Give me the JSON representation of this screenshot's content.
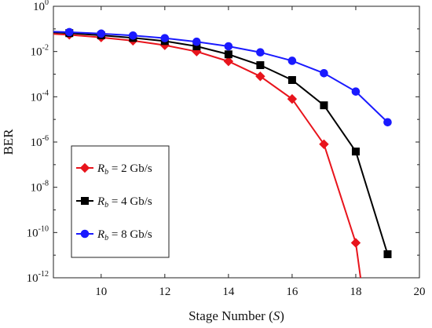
{
  "chart_data": {
    "type": "line",
    "title": "",
    "xlabel": "Stage Number (S)",
    "xlabel_parts": {
      "pre": "Stage Number (",
      "var": "S",
      "post": ")"
    },
    "ylabel": "BER",
    "x_scale": "linear",
    "y_scale": "log",
    "xlim": [
      8.5,
      20
    ],
    "ylim": [
      1e-12,
      1
    ],
    "x_ticks": [
      10,
      12,
      14,
      16,
      18,
      20
    ],
    "y_ticks": [
      {
        "value": 1,
        "base": "10",
        "exp": "0"
      },
      {
        "value": 0.01,
        "base": "10",
        "exp": "-2"
      },
      {
        "value": 0.0001,
        "base": "10",
        "exp": "-4"
      },
      {
        "value": 1e-06,
        "base": "10",
        "exp": "-6"
      },
      {
        "value": 1e-08,
        "base": "10",
        "exp": "-8"
      },
      {
        "value": 1e-10,
        "base": "10",
        "exp": "-10"
      },
      {
        "value": 1e-12,
        "base": "10",
        "exp": "-12"
      }
    ],
    "grid": false,
    "legend_position": "lower-left",
    "series": [
      {
        "name": "Rb = 2 Gb/s",
        "label": {
          "sym": "R",
          "sub": "b",
          "rest": " = 2 Gb/s"
        },
        "color": "#e8141c",
        "marker": "diamond",
        "marker_color": "#e8141c",
        "x": [
          8.5,
          9,
          10,
          11,
          12,
          13,
          14,
          15,
          16,
          17,
          18,
          18.15
        ],
        "y": [
          0.06,
          0.055,
          0.042,
          0.03,
          0.019,
          0.01,
          0.0037,
          0.0008,
          8e-05,
          8e-07,
          3.5e-11,
          1e-12
        ]
      },
      {
        "name": "Rb = 4 Gb/s",
        "label": {
          "sym": "R",
          "sub": "b",
          "rest": " = 4 Gb/s"
        },
        "color": "#000000",
        "marker": "square",
        "marker_color": "#000000",
        "x": [
          8.5,
          9,
          10,
          11,
          12,
          13,
          14,
          15,
          16,
          17,
          18,
          19
        ],
        "y": [
          0.07,
          0.065,
          0.052,
          0.04,
          0.029,
          0.017,
          0.0075,
          0.0025,
          0.00055,
          4.2e-05,
          3.8e-07,
          1.1e-11
        ]
      },
      {
        "name": "Rb = 8 Gb/s",
        "label": {
          "sym": "R",
          "sub": "b",
          "rest": " = 8 Gb/s"
        },
        "color": "#1a1aff",
        "marker": "circle",
        "marker_color": "#1a1aff",
        "x": [
          8.5,
          9,
          10,
          11,
          12,
          13,
          14,
          15,
          16,
          17,
          18,
          19
        ],
        "y": [
          0.075,
          0.072,
          0.062,
          0.051,
          0.039,
          0.027,
          0.017,
          0.0092,
          0.0039,
          0.0011,
          0.00017,
          7.5e-06
        ]
      }
    ]
  }
}
